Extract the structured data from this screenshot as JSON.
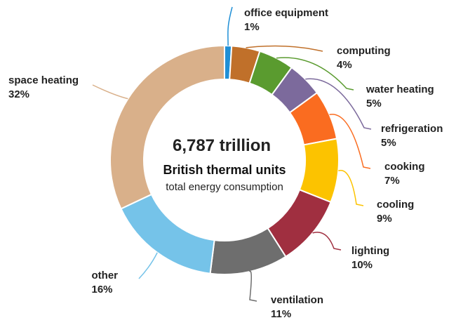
{
  "chart_data": {
    "type": "pie",
    "center_text": {
      "line1": "6,787 trillion",
      "line2": "British thermal units",
      "line3": "total energy consumption"
    },
    "slices": [
      {
        "name": "office equipment",
        "value": 1,
        "label": "1%",
        "color": "#1f8fd6"
      },
      {
        "name": "computing",
        "value": 4,
        "label": "4%",
        "color": "#c0702a"
      },
      {
        "name": "water heating",
        "value": 5,
        "label": "5%",
        "color": "#5a9b2f"
      },
      {
        "name": "refrigeration",
        "value": 5,
        "label": "5%",
        "color": "#7c6a9c"
      },
      {
        "name": "cooking",
        "value": 7,
        "label": "7%",
        "color": "#fa6c20"
      },
      {
        "name": "cooling",
        "value": 9,
        "label": "9%",
        "color": "#fcc300"
      },
      {
        "name": "lighting",
        "value": 10,
        "label": "10%",
        "color": "#a02f40"
      },
      {
        "name": "ventilation",
        "value": 11,
        "label": "11%",
        "color": "#6e6e6e"
      },
      {
        "name": "other",
        "value": 16,
        "label": "16%",
        "color": "#75c3e9"
      },
      {
        "name": "space heating",
        "value": 32,
        "label": "32%",
        "color": "#d9b08a"
      }
    ]
  }
}
